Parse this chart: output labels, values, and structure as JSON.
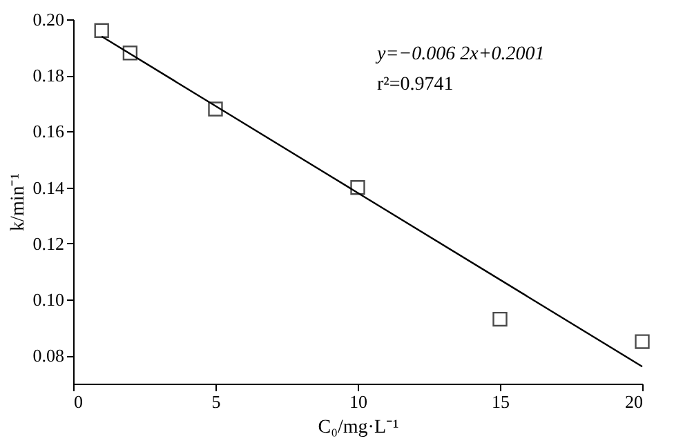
{
  "chart_data": {
    "type": "scatter",
    "xlabel": "C₀/mg·L⁻¹",
    "ylabel": "k/min⁻¹",
    "xlim": [
      0,
      20
    ],
    "xticks": [
      0,
      5,
      10,
      15,
      20
    ],
    "ylim": [
      0.07,
      0.2
    ],
    "yticks": [
      0.08,
      {
        "value": 0.1,
        "label": "0.10"
      },
      0.12,
      0.14,
      0.16,
      0.18,
      {
        "value": 0.2,
        "label": "0.20"
      }
    ],
    "grid": false,
    "annotations": [
      "y=−0.006 2x+0.2001",
      "r²=0.9741"
    ],
    "series": [
      {
        "type": "scatter",
        "marker": "square",
        "color": "#000000",
        "x": [
          1,
          2,
          5,
          10,
          15,
          20
        ],
        "values": [
          0.196,
          0.188,
          0.168,
          0.14,
          0.093,
          0.085
        ]
      },
      {
        "type": "line",
        "marker": "none",
        "line_style": "solid",
        "color": "#000000",
        "x": [
          1,
          20
        ],
        "values": [
          0.1939,
          0.0761
        ]
      }
    ]
  }
}
